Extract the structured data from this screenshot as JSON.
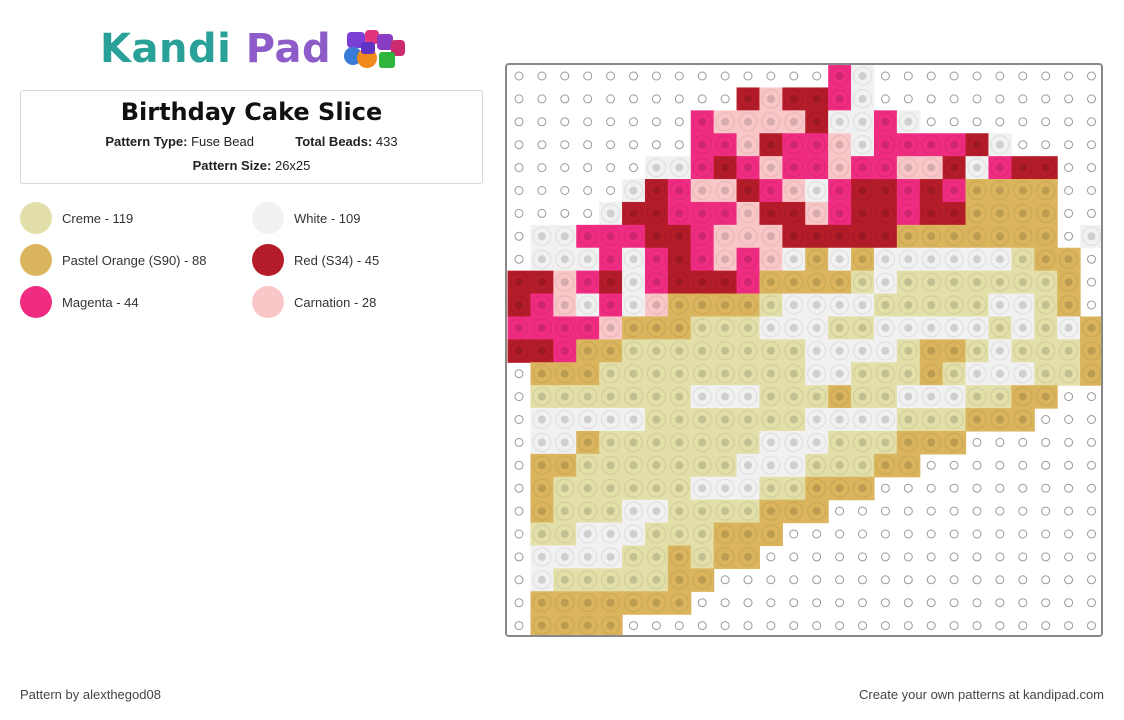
{
  "logo": {
    "part1": "Kandi",
    "part2": "Pad"
  },
  "pattern": {
    "title": "Birthday Cake Slice",
    "type_label": "Pattern Type:",
    "type_value": "Fuse Bead",
    "beads_label": "Total Beads:",
    "beads_value": "433",
    "size_label": "Pattern Size:",
    "size_value": "26x25"
  },
  "legend": [
    {
      "label": "Creme - 119",
      "color": "#e2dfa9"
    },
    {
      "label": "White - 109",
      "color": "#f1f1f1"
    },
    {
      "label": "Pastel Orange (S90) - 88",
      "color": "#dbb55d"
    },
    {
      "label": "Red (S34) - 45",
      "color": "#b51c2a"
    },
    {
      "label": "Magenta - 44",
      "color": "#ef2c81"
    },
    {
      "label": "Carnation - 28",
      "color": "#f9c7c7"
    }
  ],
  "grid": {
    "cols": 26,
    "rows": 25,
    "palette": {
      "C": "#e2dfa9",
      "W": "#f1f1f1",
      "O": "#dbb55d",
      "R": "#b51c2a",
      "M": "#ef2c81",
      "P": "#f9c7c7"
    },
    "cells": [
      "..............MW..........",
      "..........RPRRMW..........",
      "........MPPPPRWWMW........",
      "........MMPRMMPWMMMMRW....",
      "......WWMRMPMMPMMPPRWMRR..",
      ".....WRMPPRMPWMRRMRMOOOO..",
      "....WRRMMMPRRPMRRMRROOOO..",
      ".WWMMMRRMPPPRRRRROOOOOOO.W",
      ".WWWMWMRMPMPWOWOWWWWWWCOO.",
      "RRPMRWMRRRMOOOOCWCCCCCCCO.",
      "RMPWMWPOOOOCWWWWCCCCCWWCO.",
      "MMMMPOOOCCCWWWCCWWWWWCWCWO",
      "RRMOOCCCCCCCCWWWWCOOCWCCCO",
      ".OOOCCCCCCCCCWWCCCOCWWWCCO",
      ".CCCCCCCWWWCCCOCCWWWCCOO..",
      ".WWWWWCCCCCCCWWWWCCCOOO...",
      ".WWOCCCCCCCWWWCCCOOO......",
      ".OOCCCCCCCWWWCCCOO........",
      ".OCCCCCCWWWCCOOO..........",
      ".OCCCWWCCCCOOO............",
      ".CCWWWCCCOOO..............",
      ".WWWWCCOCOO...............",
      ".WCCCCCOO.................",
      ".OOOOOOO..................",
      ".OOOO....................."
    ]
  },
  "footer": {
    "credit": "Pattern by alexthegod08",
    "cta": "Create your own patterns at kandipad.com"
  }
}
